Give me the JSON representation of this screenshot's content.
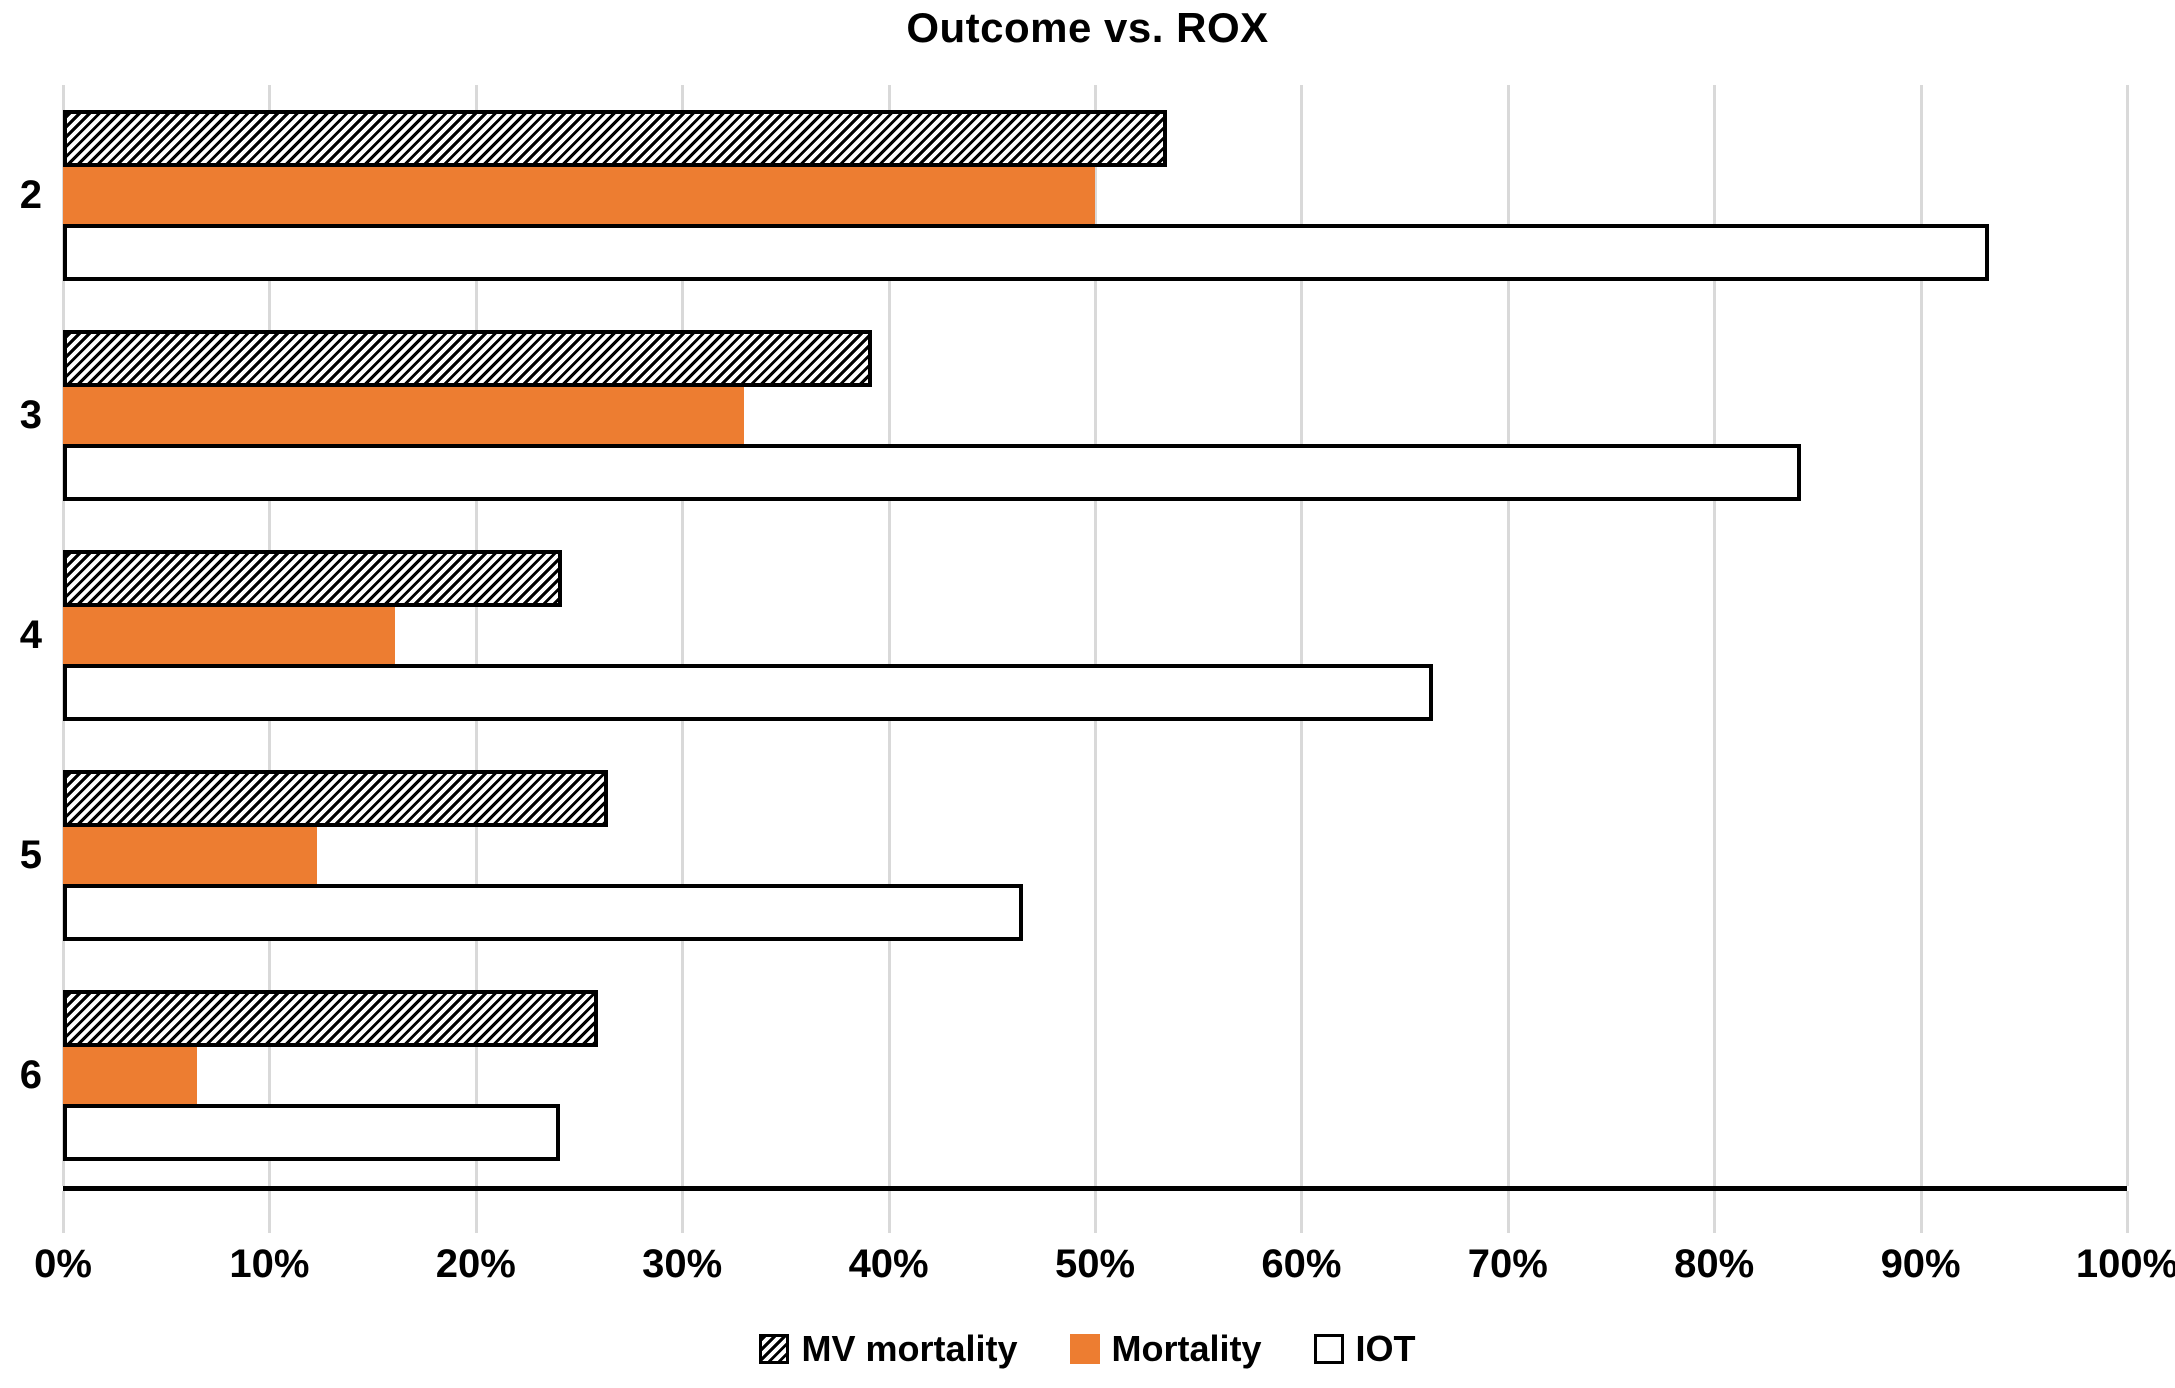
{
  "title": "Outcome vs. ROX",
  "chart_data": {
    "type": "bar",
    "orientation": "horizontal",
    "title": "Outcome vs. ROX",
    "categories": [
      "2",
      "3",
      "4",
      "5",
      "6"
    ],
    "series": [
      {
        "name": "MV mortality",
        "pattern": "black-diagonal-hatch-on-white",
        "values": [
          53.5,
          39.2,
          24.2,
          26.4,
          25.9
        ]
      },
      {
        "name": "Mortality",
        "pattern": "solid-orange",
        "values": [
          50.0,
          33.0,
          16.1,
          12.3,
          6.5
        ]
      },
      {
        "name": "IOT",
        "pattern": "white-black-outline",
        "values": [
          93.3,
          84.2,
          66.4,
          46.5,
          24.1
        ]
      }
    ],
    "x_axis": {
      "min": 0,
      "max": 100,
      "unit": "%",
      "tick_labels": [
        "0%",
        "10%",
        "20%",
        "30%",
        "40%",
        "50%",
        "60%",
        "70%",
        "80%",
        "90%",
        "100%"
      ]
    },
    "y_axis": {
      "tick_labels": [
        "2",
        "3",
        "4",
        "5",
        "6"
      ]
    },
    "legend": {
      "position": "bottom",
      "entries": [
        "MV mortality",
        "Mortality",
        "IOT"
      ]
    },
    "grid": "vertical-only",
    "colors": {
      "orange": "#ED7D31",
      "gridline": "#d9d9d9",
      "axis_line": "#000000",
      "bar_border": "#000000",
      "text": "#000000",
      "background": "#ffffff"
    }
  }
}
